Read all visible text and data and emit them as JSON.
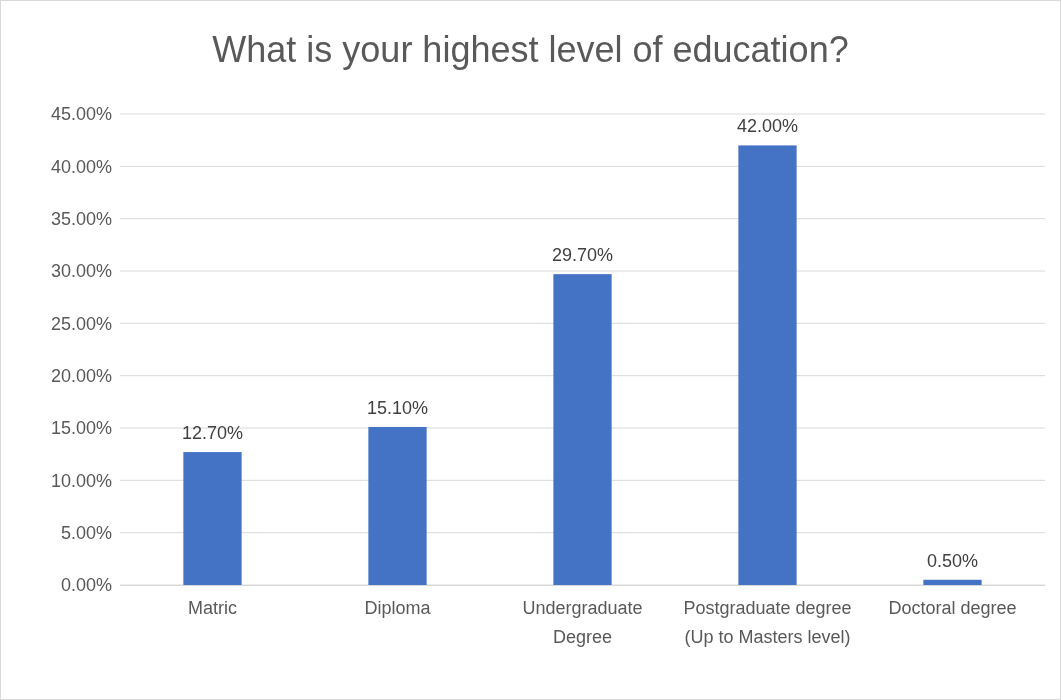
{
  "chart_data": {
    "type": "bar",
    "title": "What is your highest level of education?",
    "categories": [
      "Matric",
      "Diploma",
      "Undergraduate Degree",
      "Postgraduate degree (Up to Masters level)",
      "Doctoral degree"
    ],
    "values": [
      12.7,
      15.1,
      29.7,
      42.0,
      0.5
    ],
    "value_labels": [
      "12.70%",
      "15.10%",
      "29.70%",
      "42.00%",
      "0.50%"
    ],
    "color": "#4472c4",
    "ylim": [
      0,
      45
    ],
    "yticks": [
      {
        "value": 0,
        "label": "0.00%"
      },
      {
        "value": 5,
        "label": "5.00%"
      },
      {
        "value": 10,
        "label": "10.00%"
      },
      {
        "value": 15,
        "label": "15.00%"
      },
      {
        "value": 20,
        "label": "20.00%"
      },
      {
        "value": 25,
        "label": "25.00%"
      },
      {
        "value": 30,
        "label": "30.00%"
      },
      {
        "value": 35,
        "label": "35.00%"
      },
      {
        "value": 40,
        "label": "40.00%"
      },
      {
        "value": 45,
        "label": "45.00%"
      }
    ],
    "grid": "y"
  }
}
